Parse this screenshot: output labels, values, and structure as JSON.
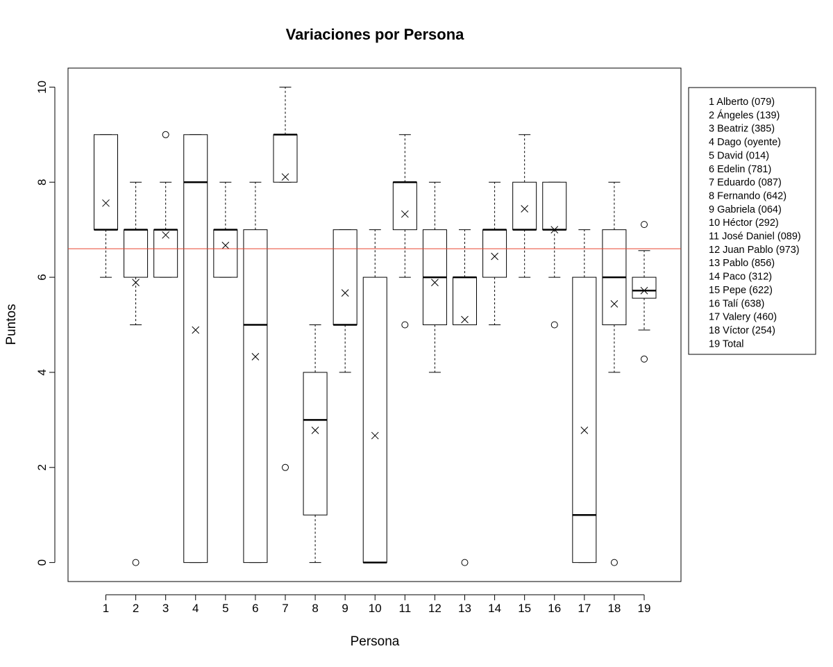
{
  "chart_data": {
    "type": "box",
    "title": "Variaciones por Persona",
    "xlabel": "Persona",
    "ylabel": "Puntos",
    "ylim": [
      -0.4,
      10.4
    ],
    "yticks": [
      "0",
      "2",
      "4",
      "6",
      "8",
      "10"
    ],
    "categories": [
      "1",
      "2",
      "3",
      "4",
      "5",
      "6",
      "7",
      "8",
      "9",
      "10",
      "11",
      "12",
      "13",
      "14",
      "15",
      "16",
      "17",
      "18",
      "19"
    ],
    "reference_line": {
      "y": 6.6,
      "color": "#e8432f"
    },
    "legend": {
      "position": "right",
      "entries": [
        "1 Alberto (079)",
        "2 Ángeles (139)",
        "3 Beatriz (385)",
        "4 Dago (oyente)",
        "5 David (014)",
        "6 Edelin (781)",
        "7 Eduardo (087)",
        "8 Fernando (642)",
        "9 Gabriela (064)",
        "10 Héctor (292)",
        "11 José Daniel (089)",
        "12 Juan Pablo (973)",
        "13 Pablo (856)",
        "14 Paco (312)",
        "15 Pepe (622)",
        "16 Talí (638)",
        "17 Valery (460)",
        "18 Víctor (254)",
        "19 Total"
      ]
    },
    "boxes": [
      {
        "min": 6,
        "q1": 7,
        "median": 7,
        "q3": 9,
        "max": 9,
        "mean": 7.56,
        "outliers": []
      },
      {
        "min": 5,
        "q1": 6,
        "median": 7,
        "q3": 7,
        "max": 8,
        "mean": 5.89,
        "outliers": [
          0
        ]
      },
      {
        "min": 6,
        "q1": 6,
        "median": 7,
        "q3": 7,
        "max": 8,
        "mean": 6.89,
        "outliers": [
          9
        ]
      },
      {
        "min": 0,
        "q1": 0,
        "median": 8,
        "q3": 9,
        "max": 9,
        "mean": 4.89,
        "outliers": []
      },
      {
        "min": 6,
        "q1": 6,
        "median": 7,
        "q3": 7,
        "max": 8,
        "mean": 6.67,
        "outliers": []
      },
      {
        "min": 0,
        "q1": 0,
        "median": 5,
        "q3": 7,
        "max": 8,
        "mean": 4.33,
        "outliers": []
      },
      {
        "min": 8,
        "q1": 8,
        "median": 9,
        "q3": 9,
        "max": 10,
        "mean": 8.11,
        "outliers": [
          2
        ]
      },
      {
        "min": 0,
        "q1": 1,
        "median": 3,
        "q3": 4,
        "max": 5,
        "mean": 2.78,
        "outliers": []
      },
      {
        "min": 4,
        "q1": 5,
        "median": 5,
        "q3": 7,
        "max": 7,
        "mean": 5.67,
        "outliers": []
      },
      {
        "min": 0,
        "q1": 0,
        "median": 0,
        "q3": 6,
        "max": 7,
        "mean": 2.67,
        "outliers": []
      },
      {
        "min": 6,
        "q1": 7,
        "median": 8,
        "q3": 8,
        "max": 9,
        "mean": 7.33,
        "outliers": [
          5
        ]
      },
      {
        "min": 4,
        "q1": 5,
        "median": 6,
        "q3": 7,
        "max": 8,
        "mean": 5.89,
        "outliers": []
      },
      {
        "min": 5,
        "q1": 5,
        "median": 6,
        "q3": 6,
        "max": 7,
        "mean": 5.11,
        "outliers": [
          0
        ]
      },
      {
        "min": 5,
        "q1": 6,
        "median": 7,
        "q3": 7,
        "max": 8,
        "mean": 6.44,
        "outliers": []
      },
      {
        "min": 6,
        "q1": 7,
        "median": 7,
        "q3": 8,
        "max": 9,
        "mean": 7.44,
        "outliers": []
      },
      {
        "min": 6,
        "q1": 7,
        "median": 7,
        "q3": 8,
        "max": 8,
        "mean": 7.0,
        "outliers": [
          5
        ]
      },
      {
        "min": 0,
        "q1": 0,
        "median": 1,
        "q3": 6,
        "max": 7,
        "mean": 2.78,
        "outliers": []
      },
      {
        "min": 4,
        "q1": 5,
        "median": 6,
        "q3": 7,
        "max": 8,
        "mean": 5.44,
        "outliers": [
          0
        ]
      },
      {
        "min": 4.89,
        "q1": 5.56,
        "median": 5.72,
        "q3": 6.0,
        "max": 6.56,
        "mean": 5.72,
        "outliers": [
          4.28,
          7.11
        ]
      }
    ]
  }
}
